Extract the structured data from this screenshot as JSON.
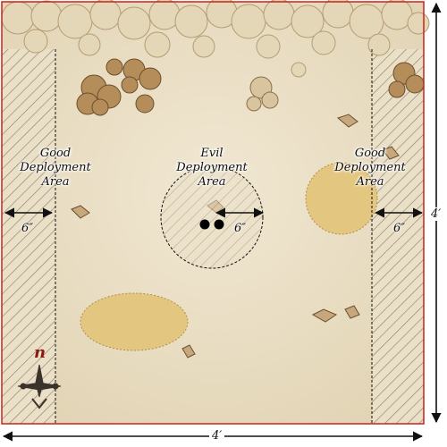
{
  "map": {
    "zones": {
      "left_line1": "Good",
      "left_line2": "Deployment",
      "left_line3": "Area",
      "center_line1": "Evil",
      "center_line2": "Deployment",
      "center_line3": "Area",
      "right_line1": "Good",
      "right_line2": "Deployment",
      "right_line3": "Area"
    },
    "measurements": {
      "left": "6″",
      "center": "6″",
      "right": "6″",
      "bottom": "4′",
      "side": "4′"
    },
    "compass_letter": "n"
  },
  "colors": {
    "parchment": "#e8dcc2",
    "parchment_light": "#f1e8d3",
    "tree_dark": "#b08b5a",
    "tree_light": "#e2d5b6",
    "field": "#e2c481",
    "north": "#8a1a10"
  }
}
